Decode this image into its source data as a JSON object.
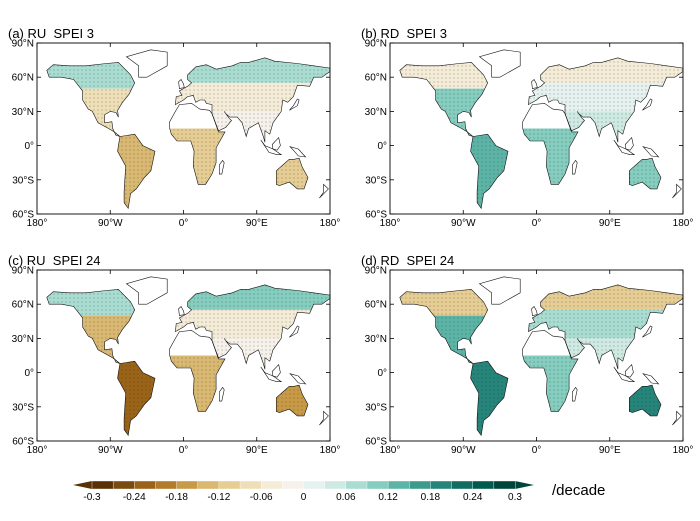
{
  "chart_data": {
    "type": "map",
    "panels": [
      {
        "title": "(a) RU  SPEI 3",
        "regions": {
          "north_america_north": 0.06,
          "north_america_south": -0.09,
          "south_america": -0.15,
          "africa_south": -0.12,
          "eurasia_north": 0.06,
          "eurasia_mid": -0.04,
          "eurasia_south": -0.03,
          "australia": -0.1
        }
      },
      {
        "title": "(b) RD  SPEI 3",
        "regions": {
          "north_america_north": -0.06,
          "north_america_south": 0.09,
          "south_america": 0.12,
          "africa_south": 0.09,
          "eurasia_north": -0.06,
          "eurasia_mid": 0.03,
          "eurasia_south": 0.04,
          "australia": 0.1
        }
      },
      {
        "title": "(c) RU  SPEI 24",
        "regions": {
          "north_america_north": 0.06,
          "north_america_south": -0.15,
          "south_america": -0.22,
          "africa_south": -0.15,
          "eurasia_north": 0.1,
          "eurasia_mid": -0.06,
          "eurasia_south": -0.03,
          "australia": -0.18
        }
      },
      {
        "title": "(d) RD  SPEI 24",
        "regions": {
          "north_america_north": -0.1,
          "north_america_south": 0.15,
          "south_america": 0.2,
          "africa_south": 0.1,
          "eurasia_north": -0.1,
          "eurasia_mid": 0.06,
          "eurasia_south": 0.04,
          "australia": 0.2
        }
      }
    ],
    "lat_ticks": [
      "90°N",
      "60°N",
      "30°N",
      "0°",
      "30°S",
      "60°S"
    ],
    "lon_ticks": [
      "180°",
      "90°W",
      "0°",
      "90°E",
      "180°"
    ],
    "xlim": [
      -180,
      180
    ],
    "ylim": [
      -60,
      90
    ],
    "colorbar": {
      "range": [
        -0.3,
        0.3
      ],
      "tick_labels": [
        "-0.3",
        "-0.24",
        "-0.18",
        "-0.12",
        "-0.06",
        "0",
        "0.06",
        "0.12",
        "0.18",
        "0.24",
        "0.3"
      ],
      "unit": "/decade",
      "colors": [
        "#5a3005",
        "#7b4a0e",
        "#9a6318",
        "#b27b2a",
        "#c89a45",
        "#d9b872",
        "#e5cd94",
        "#efdfb6",
        "#f5ecd8",
        "#f6f1ea",
        "#e6f2ef",
        "#cfeae3",
        "#a9ddd2",
        "#84cdbf",
        "#5cb4a6",
        "#3d9b8e",
        "#25857a",
        "#116d62",
        "#005b4e",
        "#00453a"
      ]
    }
  }
}
